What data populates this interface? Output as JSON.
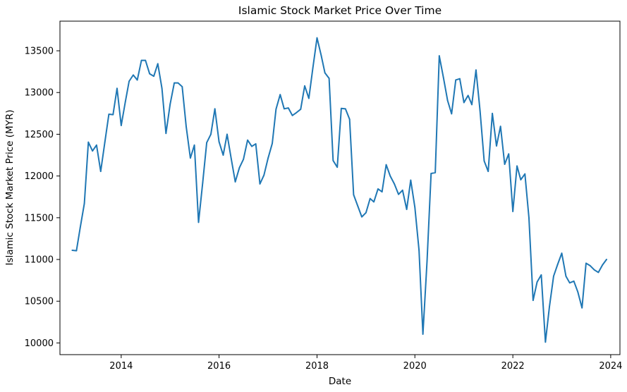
{
  "chart_data": {
    "type": "line",
    "title": "Islamic Stock Market Price Over Time",
    "xlabel": "Date",
    "ylabel": "Islamic Stock Market Price (MYR)",
    "xlim": [
      "2012-10-01",
      "2024-03-10"
    ],
    "ylim": [
      9860,
      13855
    ],
    "x_ticks": [
      "2014",
      "2016",
      "2018",
      "2020",
      "2022",
      "2024"
    ],
    "y_ticks": [
      "10000",
      "10500",
      "11000",
      "11500",
      "12000",
      "12500",
      "13000",
      "13500"
    ],
    "grid": false,
    "line_color": "#1f77b4",
    "series": [
      {
        "x": [
          "2013-01-01",
          "2013-02-01",
          "2013-03-01",
          "2013-04-01",
          "2013-05-01",
          "2013-06-01",
          "2013-07-01",
          "2013-08-01",
          "2013-09-01",
          "2013-10-01",
          "2013-11-01",
          "2013-12-01",
          "2014-01-01",
          "2014-02-01",
          "2014-03-01",
          "2014-04-01",
          "2014-05-01",
          "2014-06-01",
          "2014-07-01",
          "2014-08-01",
          "2014-09-01",
          "2014-10-01",
          "2014-11-01",
          "2014-12-01",
          "2015-01-01",
          "2015-02-01",
          "2015-03-01",
          "2015-04-01",
          "2015-05-01",
          "2015-06-01",
          "2015-07-01",
          "2015-08-01",
          "2015-09-01",
          "2015-10-01",
          "2015-11-01",
          "2015-12-01",
          "2016-01-01",
          "2016-02-01",
          "2016-03-01",
          "2016-04-01",
          "2016-05-01",
          "2016-06-01",
          "2016-07-01",
          "2016-08-01",
          "2016-09-01",
          "2016-10-01",
          "2016-11-01",
          "2016-12-01",
          "2017-01-01",
          "2017-02-01",
          "2017-03-01",
          "2017-04-01",
          "2017-05-01",
          "2017-06-01",
          "2017-07-01",
          "2017-08-01",
          "2017-09-01",
          "2017-10-01",
          "2017-11-01",
          "2017-12-01",
          "2018-01-01",
          "2018-02-01",
          "2018-03-01",
          "2018-04-01",
          "2018-05-01",
          "2018-06-01",
          "2018-07-01",
          "2018-08-01",
          "2018-09-01",
          "2018-10-01",
          "2018-11-01",
          "2018-12-01",
          "2019-01-01",
          "2019-02-01",
          "2019-03-01",
          "2019-04-01",
          "2019-05-01",
          "2019-06-01",
          "2019-07-01",
          "2019-08-01",
          "2019-09-01",
          "2019-10-01",
          "2019-11-01",
          "2019-12-01",
          "2020-01-01",
          "2020-02-01",
          "2020-03-01",
          "2020-04-01",
          "2020-05-01",
          "2020-06-01",
          "2020-07-01",
          "2020-08-01",
          "2020-09-01",
          "2020-10-01",
          "2020-11-01",
          "2020-12-01",
          "2021-01-01",
          "2021-02-01",
          "2021-03-01",
          "2021-04-01",
          "2021-05-01",
          "2021-06-01",
          "2021-07-01",
          "2021-08-01",
          "2021-09-01",
          "2021-10-01",
          "2021-11-01",
          "2021-12-01",
          "2022-01-01",
          "2022-02-01",
          "2022-03-01",
          "2022-04-01",
          "2022-05-01",
          "2022-06-01",
          "2022-07-01",
          "2022-08-01",
          "2022-09-01",
          "2022-10-01",
          "2022-11-01",
          "2022-12-01",
          "2023-01-01",
          "2023-02-01",
          "2023-03-01",
          "2023-04-01",
          "2023-05-01",
          "2023-06-01",
          "2023-07-01",
          "2023-08-01",
          "2023-09-01",
          "2023-10-01",
          "2023-11-01",
          "2023-12-01"
        ],
        "y": [
          11110,
          11105,
          11380,
          11670,
          12405,
          12300,
          12370,
          12055,
          12405,
          12740,
          12735,
          13050,
          12605,
          12890,
          13135,
          13210,
          13150,
          13385,
          13385,
          13225,
          13195,
          13345,
          13050,
          12510,
          12860,
          13115,
          13115,
          13070,
          12590,
          12215,
          12370,
          11445,
          11920,
          12400,
          12500,
          12805,
          12410,
          12250,
          12500,
          12205,
          11930,
          12100,
          12200,
          12430,
          12355,
          12385,
          11905,
          12010,
          12215,
          12390,
          12800,
          12975,
          12805,
          12815,
          12725,
          12760,
          12800,
          13080,
          12930,
          13295,
          13655,
          13445,
          13235,
          13170,
          12185,
          12105,
          12810,
          12805,
          12680,
          11775,
          11640,
          11510,
          11560,
          11730,
          11690,
          11845,
          11810,
          12135,
          12000,
          11905,
          11780,
          11830,
          11600,
          11950,
          11625,
          11110,
          10105,
          10985,
          12030,
          12040,
          13440,
          13180,
          12905,
          12745,
          13150,
          13165,
          12880,
          12965,
          12855,
          13270,
          12785,
          12180,
          12055,
          12750,
          12360,
          12595,
          12140,
          12265,
          11575,
          12120,
          11955,
          12025,
          11500,
          10510,
          10730,
          10815,
          10010,
          10435,
          10800,
          10940,
          11075,
          10800,
          10720,
          10740,
          10610,
          10420,
          10955,
          10925,
          10875,
          10845,
          10935,
          11000
        ]
      }
    ]
  }
}
